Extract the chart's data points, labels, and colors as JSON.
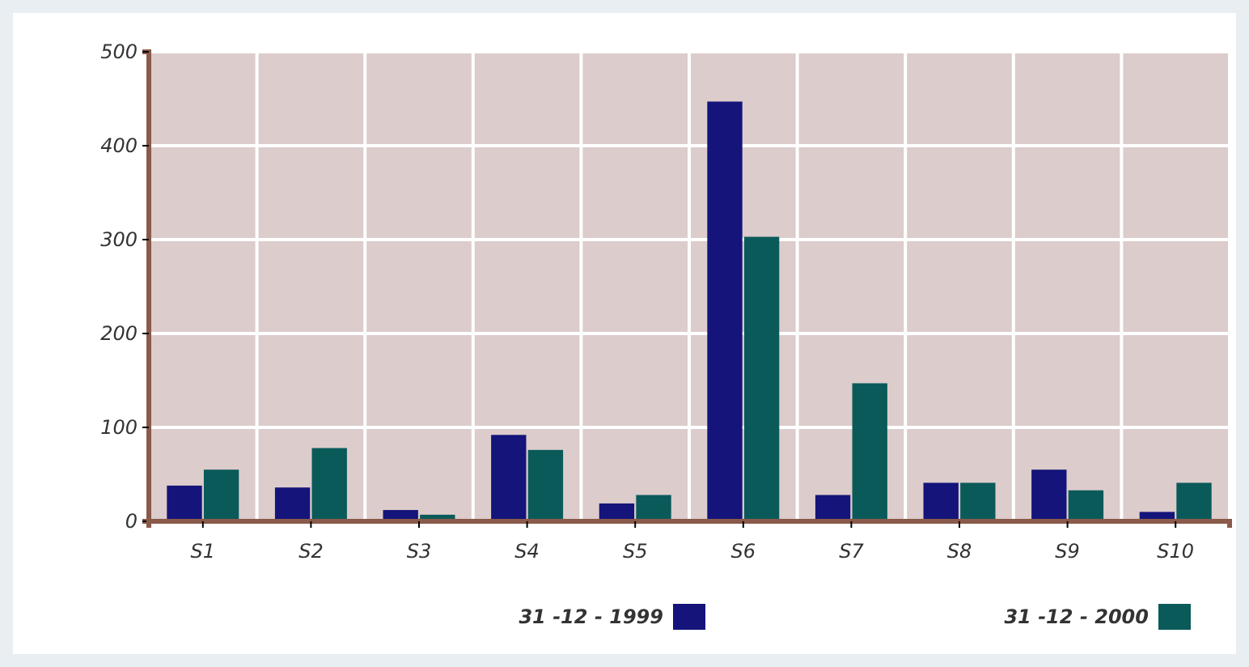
{
  "chart_data": {
    "type": "bar",
    "categories": [
      "S1",
      "S2",
      "S3",
      "S4",
      "S5",
      "S6",
      "S7",
      "S8",
      "S9",
      "S10"
    ],
    "series": [
      {
        "name": "31 -12 - 1999",
        "color": "#14147a",
        "values": [
          38,
          36,
          12,
          92,
          19,
          447,
          28,
          41,
          55,
          10
        ]
      },
      {
        "name": "31 -12 - 2000",
        "color": "#0b5a5a",
        "values": [
          55,
          78,
          7,
          76,
          28,
          303,
          147,
          41,
          33,
          41
        ]
      }
    ],
    "ylim": [
      0,
      500
    ],
    "yticks": [
      0,
      100,
      200,
      300,
      400,
      500
    ],
    "grid": true,
    "legend": "bottom"
  }
}
